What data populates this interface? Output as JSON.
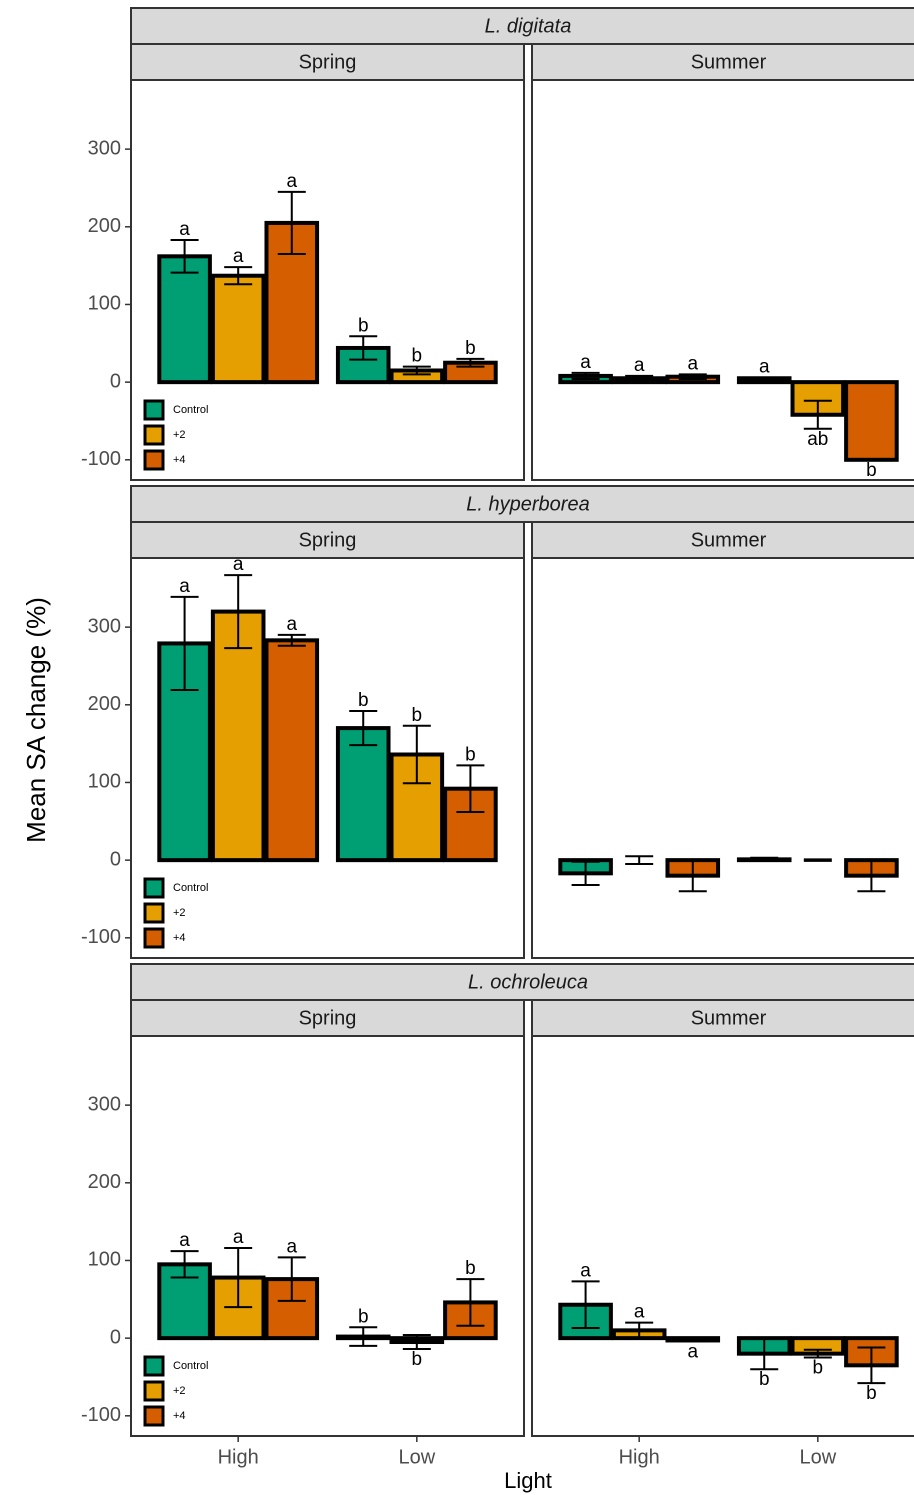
{
  "chart_data": {
    "type": "bar",
    "y_label": "Mean SA change (%)",
    "x_label": "Light",
    "categories": [
      "High",
      "Low"
    ],
    "ylim": [
      -126,
      389
    ],
    "yticks": [
      -100,
      0,
      100,
      200,
      300
    ],
    "facets": [
      {
        "species": "L. digitata",
        "panels": [
          {
            "season": "Spring",
            "series": [
              {
                "name": "Control",
                "color": "#009E73",
                "values": [
                  162,
                  44
                ],
                "errors": [
                  21,
                  15
                ],
                "letters": [
                  "a",
                  "b"
                ]
              },
              {
                "name": "+2",
                "color": "#E69F00",
                "values": [
                  137,
                  15
                ],
                "errors": [
                  11,
                  5
                ],
                "letters": [
                  "a",
                  "b"
                ]
              },
              {
                "name": "+4",
                "color": "#D55E00",
                "values": [
                  205,
                  25
                ],
                "errors": [
                  40,
                  5
                ],
                "letters": [
                  "a",
                  "b"
                ]
              }
            ]
          },
          {
            "season": "Summer",
            "series": [
              {
                "name": "Control",
                "color": "#009E73",
                "values": [
                  8,
                  5
                ],
                "errors": [
                  4,
                  1
                ],
                "letters": [
                  "a",
                  "a"
                ]
              },
              {
                "name": "+2",
                "color": "#E69F00",
                "values": [
                  5,
                  -42
                ],
                "errors": [
                  3,
                  18
                ],
                "letters": [
                  "a",
                  "ab"
                ]
              },
              {
                "name": "+4",
                "color": "#D55E00",
                "values": [
                  7,
                  -100
                ],
                "errors": [
                  3,
                  0
                ],
                "letters": [
                  "a",
                  "b"
                ]
              }
            ]
          }
        ]
      },
      {
        "species": "L. hyperborea",
        "panels": [
          {
            "season": "Spring",
            "series": [
              {
                "name": "Control",
                "color": "#009E73",
                "values": [
                  279,
                  170
                ],
                "errors": [
                  60,
                  22
                ],
                "letters": [
                  "a",
                  "b"
                ]
              },
              {
                "name": "+2",
                "color": "#E69F00",
                "values": [
                  320,
                  136
                ],
                "errors": [
                  47,
                  37
                ],
                "letters": [
                  "a",
                  "b"
                ]
              },
              {
                "name": "+4",
                "color": "#D55E00",
                "values": [
                  283,
                  92
                ],
                "errors": [
                  7,
                  30
                ],
                "letters": [
                  "a",
                  "b"
                ]
              }
            ]
          },
          {
            "season": "Summer",
            "series": [
              {
                "name": "Control",
                "color": "#009E73",
                "values": [
                  -17,
                  1
                ],
                "errors": [
                  15,
                  2
                ]
              },
              {
                "name": "+2",
                "color": "#E69F00",
                "values": [
                  0,
                  0
                ],
                "errors": [
                  5,
                  1
                ]
              },
              {
                "name": "+4",
                "color": "#D55E00",
                "values": [
                  -20,
                  -20
                ],
                "errors": [
                  20,
                  20
                ]
              }
            ]
          }
        ]
      },
      {
        "species": "L. ochroleuca",
        "panels": [
          {
            "season": "Spring",
            "series": [
              {
                "name": "Control",
                "color": "#009E73",
                "values": [
                  95,
                  2
                ],
                "errors": [
                  17,
                  12
                ],
                "letters": [
                  "a",
                  "b"
                ]
              },
              {
                "name": "+2",
                "color": "#E69F00",
                "values": [
                  78,
                  -5
                ],
                "errors": [
                  38,
                  9
                ],
                "letters": [
                  "a",
                  "b"
                ]
              },
              {
                "name": "+4",
                "color": "#D55E00",
                "values": [
                  76,
                  46
                ],
                "errors": [
                  28,
                  30
                ],
                "letters": [
                  "a",
                  "b"
                ]
              }
            ]
          },
          {
            "season": "Summer",
            "series": [
              {
                "name": "Control",
                "color": "#009E73",
                "values": [
                  43,
                  -20
                ],
                "errors": [
                  30,
                  20
                ],
                "letters": [
                  "a",
                  "b"
                ]
              },
              {
                "name": "+2",
                "color": "#E69F00",
                "values": [
                  10,
                  -20
                ],
                "errors": [
                  10,
                  5
                ],
                "letters": [
                  "a",
                  "b"
                ]
              },
              {
                "name": "+4",
                "color": "#D55E00",
                "values": [
                  -3,
                  -35
                ],
                "errors": [
                  1,
                  23
                ],
                "letters": [
                  "a",
                  "b"
                ]
              }
            ]
          }
        ]
      }
    ]
  }
}
